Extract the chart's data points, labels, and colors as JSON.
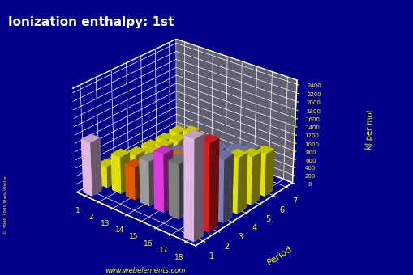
{
  "title": "Ionization enthalpy: 1st",
  "zlabel": "kJ per mol",
  "period_label": "Period",
  "background_color": "#00008B",
  "floor_color": "#606070",
  "watermark": "www.webelements.com",
  "zlim": [
    0,
    2500
  ],
  "zticks": [
    0,
    200,
    400,
    600,
    800,
    1000,
    1200,
    1400,
    1600,
    1800,
    2000,
    2200,
    2400
  ],
  "periods": [
    1,
    2,
    3,
    4,
    5,
    6,
    7
  ],
  "groups": [
    1,
    2,
    13,
    14,
    15,
    16,
    17,
    18
  ],
  "data": {
    "1": {
      "1": 1312,
      "18": 2372
    },
    "2": {
      "1": 520,
      "2": 899,
      "13": 801,
      "14": 1086,
      "15": 1402,
      "16": 1314,
      "17": 1681,
      "18": 2081
    },
    "3": {
      "1": 496,
      "2": 738,
      "13": 578,
      "14": 786,
      "15": 1012,
      "16": 1000,
      "17": 1251,
      "18": 1521
    },
    "4": {
      "1": 419,
      "2": 590,
      "13": 577,
      "14": 762,
      "15": 947,
      "16": 941,
      "17": 1140,
      "18": 1351
    },
    "5": {
      "1": 403,
      "2": 550,
      "13": 558,
      "14": 709,
      "15": 834,
      "16": 869,
      "17": 1008,
      "18": 1170
    },
    "6": {
      "1": 376,
      "2": 503,
      "13": 589,
      "14": 716,
      "15": 703,
      "16": 812,
      "17": 942,
      "18": 1037
    },
    "7": {
      "1": 380,
      "2": 509
    }
  },
  "bar_colors": {
    "1_1": "#FFD0FF",
    "1_18": "#FFD0FF",
    "2_1": "#FFFF00",
    "2_2": "#FFFF00",
    "2_13": "#FF6600",
    "2_14": "#B0B0B0",
    "2_15": "#FF40FF",
    "2_16": "#909090",
    "2_17": "#3030FF",
    "2_18": "#FF2020",
    "3_1": "#FFFF00",
    "3_2": "#FFFF00",
    "3_13": "#9090D0",
    "3_14": "#9090D0",
    "3_15": "#9090D0",
    "3_16": "#9090D0",
    "3_17": "#9090D0",
    "3_18": "#9090D0",
    "4_1": "#FFFF00",
    "4_2": "#FFFF00",
    "4_13": "#8B0000",
    "4_14": "#FF8C00",
    "4_15": "#6020A0",
    "4_16": "#FFFF00",
    "4_17": "#208020",
    "4_18": "#FFFF00",
    "5_1": "#FFFF00",
    "5_2": "#FFFF00",
    "5_13": "#9090D0",
    "5_14": "#9090D0",
    "5_15": "#9090D0",
    "5_16": "#9090D0",
    "5_17": "#9090D0",
    "5_18": "#FFFF00",
    "6_1": "#FFFF00",
    "6_2": "#FFFF00",
    "6_13": "#9090D0",
    "6_14": "#9090D0",
    "6_15": "#9090D0",
    "6_16": "#9090D0",
    "6_17": "#9090D0",
    "6_18": "#FFFF00",
    "7_1": "#FFFF00",
    "7_2": "#FFFF00"
  },
  "elev": 28,
  "azim": -50
}
